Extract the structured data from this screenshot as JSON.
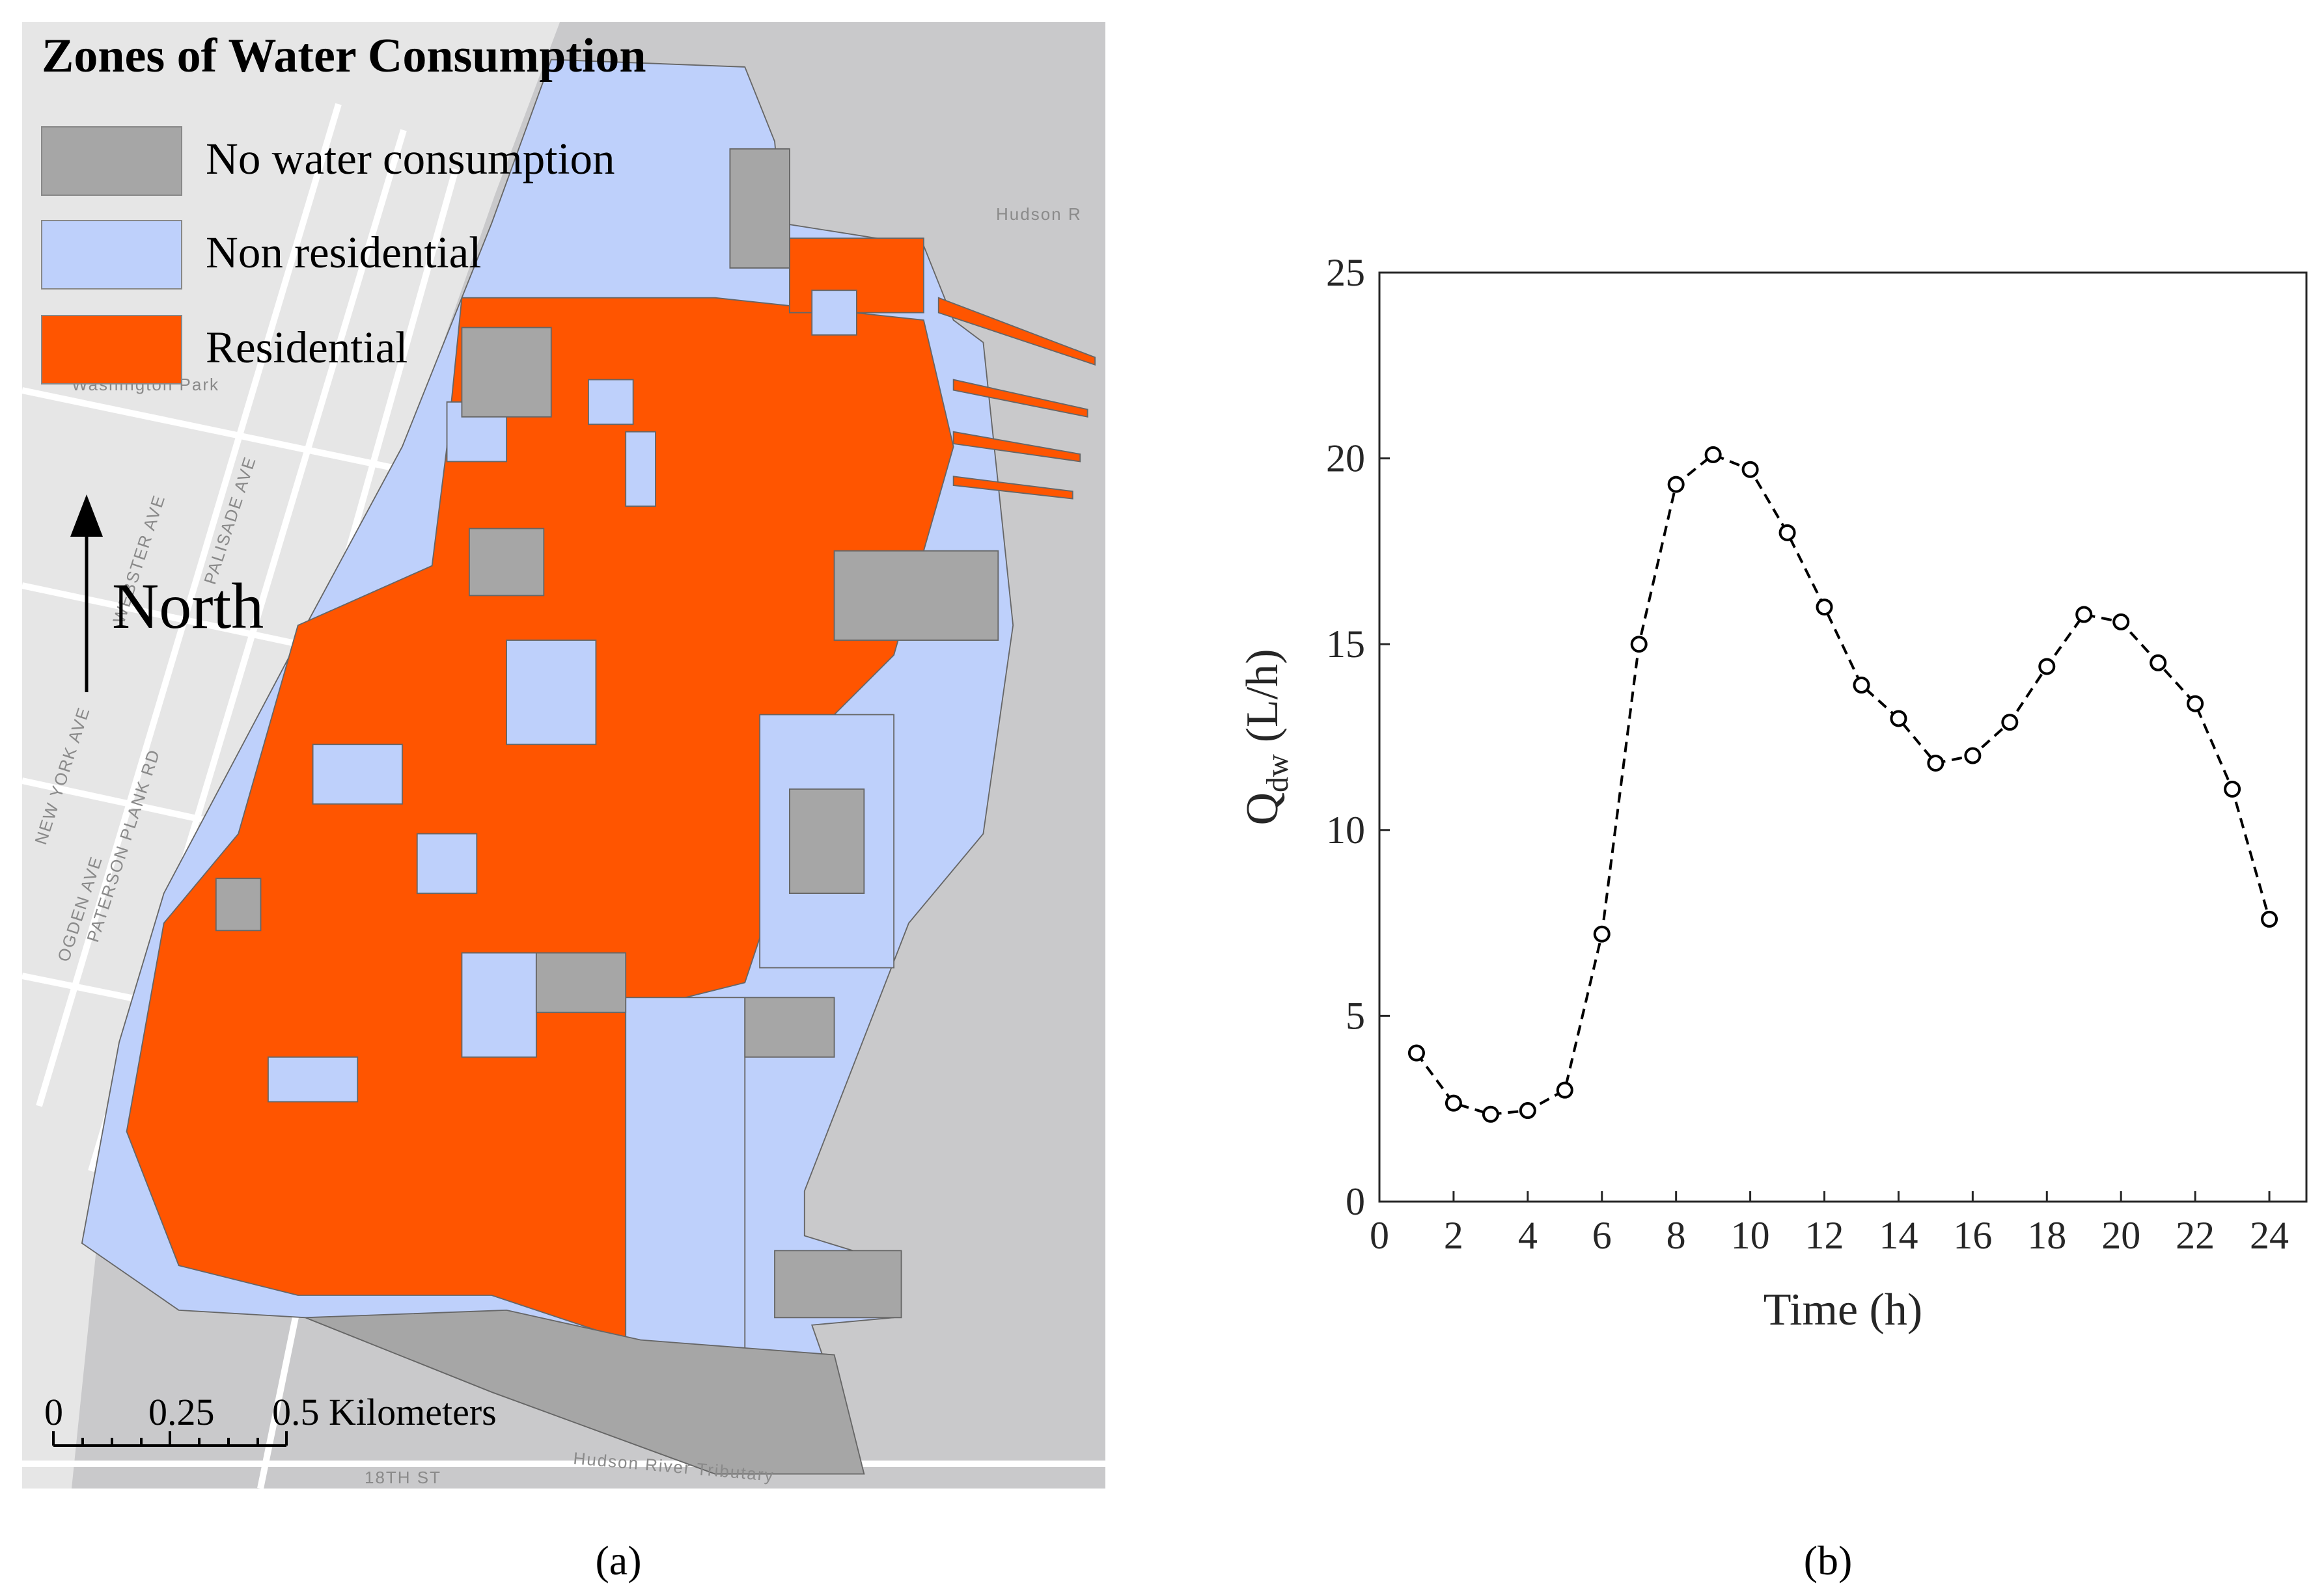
{
  "map": {
    "title": "Zones of Water Consumption",
    "legend": [
      {
        "label": "No water consumption",
        "color": "#a6a6a6"
      },
      {
        "label": "Non residential",
        "color": "#bed0fb"
      },
      {
        "label": "Residential",
        "color": "#ff5500"
      }
    ],
    "north_label": "North",
    "scale_labels": [
      "0",
      "0.25",
      "0.5 Kilometers"
    ],
    "place_labels": [
      "Hudson R",
      "Washington Park",
      "NEW YORK AVE",
      "PATERSON PLANK RD",
      "OGDEN AVE",
      "WEBSTER AVE",
      "PALISADE AVE",
      "Hudson River Tributary",
      "18TH ST"
    ],
    "caption": "(a)"
  },
  "chart_data": {
    "type": "line",
    "caption": "(b)",
    "x_label": "Time (h)",
    "y_label": {
      "main": "Q",
      "sub": "dw",
      "unit": "(L/h)"
    },
    "x": [
      1,
      2,
      3,
      4,
      5,
      6,
      7,
      8,
      9,
      10,
      11,
      12,
      13,
      14,
      15,
      16,
      17,
      18,
      19,
      20,
      21,
      22,
      23,
      24
    ],
    "values": [
      4.0,
      2.65,
      2.35,
      2.45,
      3.0,
      7.2,
      15.0,
      19.3,
      20.1,
      19.7,
      18.0,
      16.0,
      13.9,
      13.0,
      11.8,
      12.0,
      12.9,
      14.4,
      15.8,
      15.6,
      14.5,
      13.4,
      11.1,
      7.6
    ],
    "color": "#000000",
    "line_style": "dashed",
    "marker": "open-circle",
    "xlim": [
      0,
      25
    ],
    "xticks": [
      0,
      2,
      4,
      6,
      8,
      10,
      12,
      14,
      16,
      18,
      20,
      22,
      24
    ],
    "ylim": [
      0,
      25
    ],
    "yticks": [
      0,
      5,
      10,
      15,
      20,
      25
    ]
  }
}
